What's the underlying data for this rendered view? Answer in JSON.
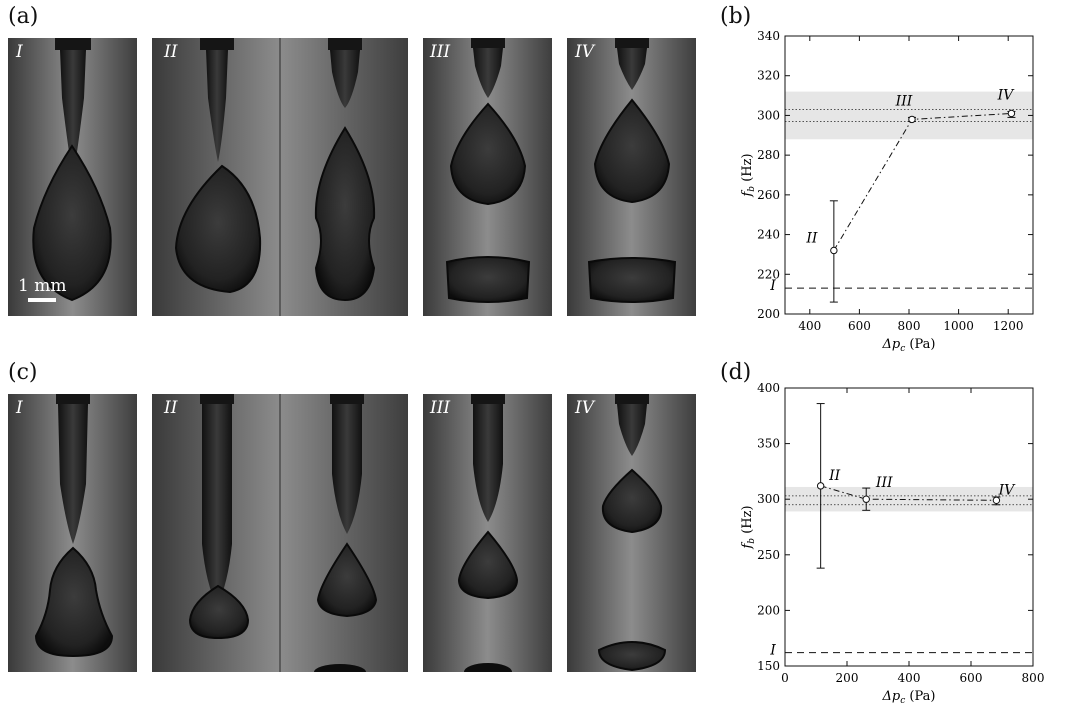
{
  "figure": {
    "panels": [
      "(a)",
      "(b)",
      "(c)",
      "(d)"
    ],
    "photo_labels_a": [
      "I",
      "II",
      "III",
      "IV"
    ],
    "photo_labels_c": [
      "I",
      "II",
      "III",
      "IV"
    ],
    "scale_bar_label": "1 mm"
  },
  "chart_data": [
    {
      "type": "line",
      "panel": "(b)",
      "xlabel": "Δp_c (Pa)",
      "ylabel": "f_b (Hz)",
      "xlim": [
        300,
        1300
      ],
      "ylim": [
        200,
        340
      ],
      "xticks": [
        400,
        600,
        800,
        1000,
        1200
      ],
      "yticks": [
        200,
        220,
        240,
        260,
        280,
        300,
        320,
        340
      ],
      "points": [
        {
          "label": "II",
          "x": 497,
          "y": 232,
          "err_low": 206,
          "err_high": 257
        },
        {
          "label": "III",
          "x": 812,
          "y": 298,
          "err_low": 297,
          "err_high": 299
        },
        {
          "label": "IV",
          "x": 1213,
          "y": 301,
          "err_low": 299,
          "err_high": 302
        }
      ],
      "reference_line": {
        "label": "I",
        "y": 213
      },
      "band": {
        "y_low": 288,
        "y_high": 312
      },
      "dotted_lines": [
        297,
        303
      ]
    },
    {
      "type": "line",
      "panel": "(d)",
      "xlabel": "Δp_c (Pa)",
      "ylabel": "f_b (Hz)",
      "xlim": [
        0,
        800
      ],
      "ylim": [
        150,
        400
      ],
      "xticks": [
        0,
        200,
        400,
        600,
        800
      ],
      "yticks": [
        150,
        200,
        250,
        300,
        350,
        400
      ],
      "points": [
        {
          "label": "II",
          "x": 115,
          "y": 312,
          "err_low": 238,
          "err_high": 386
        },
        {
          "label": "III",
          "x": 262,
          "y": 300,
          "err_low": 290,
          "err_high": 310
        },
        {
          "label": "IV",
          "x": 682,
          "y": 299,
          "err_low": 295,
          "err_high": 302
        }
      ],
      "reference_line": {
        "label": "I",
        "y": 162
      },
      "band": {
        "y_low": 289,
        "y_high": 311
      },
      "dotted_lines": [
        295,
        303
      ]
    }
  ]
}
